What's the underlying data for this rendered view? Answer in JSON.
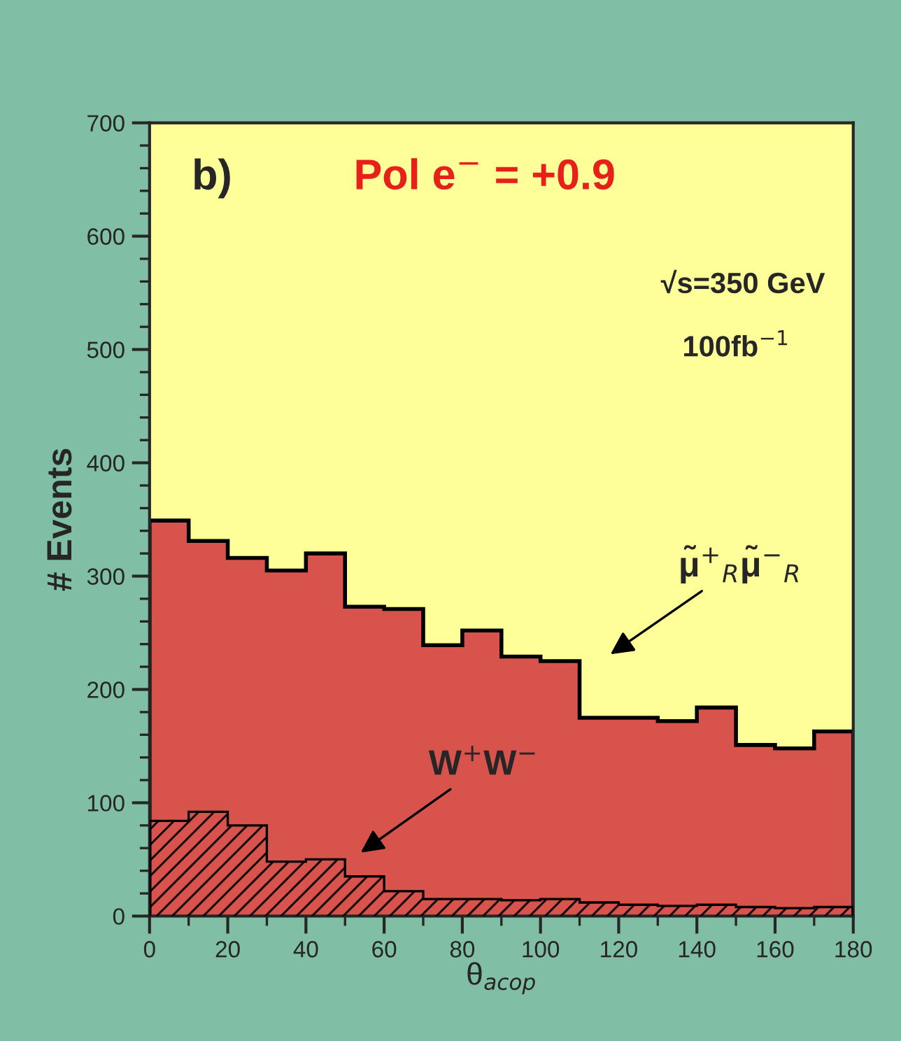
{
  "chart_data": {
    "type": "histogram",
    "xlabel": "θ$_{acop}$",
    "ylabel": "# Events",
    "bins": [
      0,
      10,
      20,
      30,
      40,
      50,
      60,
      70,
      80,
      90,
      100,
      110,
      120,
      130,
      140,
      150,
      160,
      170,
      180
    ],
    "series": [
      {
        "color": "#d9534d",
        "values": [
          349,
          331,
          316,
          305,
          320,
          273,
          271,
          239,
          252,
          229,
          225,
          175,
          175,
          172,
          184,
          151,
          148,
          163
        ]
      },
      {
        "color": "#000000",
        "values": [
          84,
          92,
          80,
          48,
          50,
          35,
          22,
          15,
          15,
          14,
          15,
          12,
          10,
          9,
          10,
          8,
          7,
          8
        ]
      }
    ],
    "xlim": [
      0,
      180
    ],
    "xticks": [
      0,
      20,
      40,
      60,
      80,
      100,
      120,
      140,
      160,
      180
    ],
    "ylim": [
      0,
      700
    ],
    "yticks": [
      0,
      100,
      200,
      300,
      400,
      500,
      600,
      700
    ],
    "annotations": [
      "b)",
      "Pol e$^{−}$ = +0.9",
      "√s=350 GeV",
      "100fb$^{−1}$",
      "μ̃$^{+}$$_{R}$μ̃$^{−}$$_{R}$",
      "W$^{+}$W$^{−}$"
    ],
    "grid": false,
    "legend": false
  }
}
